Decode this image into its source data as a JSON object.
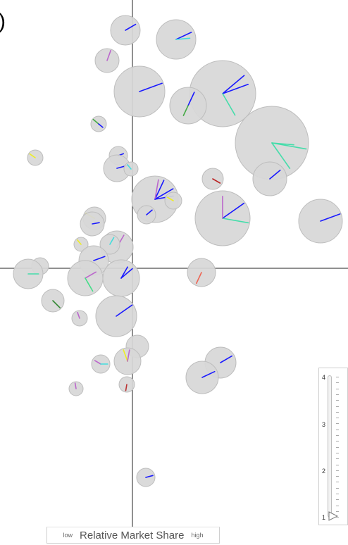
{
  "corner_glyph": ")",
  "x_axis": {
    "low_label": "low",
    "title": "Relative Market Share",
    "high_label": "high"
  },
  "slider": {
    "tick_labels": [
      "4",
      "3",
      "2",
      "1"
    ],
    "value": 1
  },
  "colors": {
    "bubble_fill": "#d7d7d7",
    "axis": "#222222"
  },
  "chart_data": {
    "type": "scatter",
    "xlabel": "Relative Market Share",
    "x_ends": [
      "low",
      "high"
    ],
    "xlim": [
      0,
      494
    ],
    "ylim": [
      0,
      774
    ],
    "quadrant_center": [
      188,
      381
    ],
    "grid": false,
    "points": [
      {
        "x": 178,
        "y": 43,
        "size": 21,
        "spokes": [
          {
            "color": "#1a1aff",
            "angle": -30,
            "len": 0.8
          }
        ]
      },
      {
        "x": 250,
        "y": 56,
        "size": 28,
        "spokes": [
          {
            "color": "#1a1aff",
            "angle": -25,
            "len": 0.85
          },
          {
            "color": "#44dddd",
            "angle": -5,
            "len": 0.7
          }
        ]
      },
      {
        "x": 152,
        "y": 86,
        "size": 17,
        "spokes": [
          {
            "color": "#bb66cc",
            "angle": -70,
            "len": 0.9
          }
        ]
      },
      {
        "x": 198,
        "y": 130,
        "size": 36,
        "spokes": [
          {
            "color": "#1a1aff",
            "angle": -20,
            "len": 0.95
          }
        ]
      },
      {
        "x": 316,
        "y": 133,
        "size": 47,
        "spokes": [
          {
            "color": "#1a1aff",
            "angle": -40,
            "len": 0.85
          },
          {
            "color": "#1a1aff",
            "angle": -20,
            "len": 0.82
          },
          {
            "color": "#44ddaa",
            "angle": 60,
            "len": 0.75
          }
        ]
      },
      {
        "x": 267,
        "y": 150,
        "size": 26,
        "spokes": [
          {
            "color": "#1a1aff",
            "angle": -65,
            "len": 0.8
          },
          {
            "color": "#44aa44",
            "angle": 115,
            "len": 0.6
          }
        ]
      },
      {
        "x": 140,
        "y": 176,
        "size": 11,
        "spokes": [
          {
            "color": "#44aa44",
            "angle": -140,
            "len": 0.9
          },
          {
            "color": "#1a1aff",
            "angle": 40,
            "len": 0.7
          }
        ]
      },
      {
        "x": 386,
        "y": 203,
        "size": 52,
        "spokes": [
          {
            "color": "#44ddaa",
            "angle": 10,
            "len": 0.95
          },
          {
            "color": "#44ddaa",
            "angle": 55,
            "len": 0.85
          },
          {
            "color": "#44ddaa",
            "angle": 5,
            "len": 0.6
          }
        ]
      },
      {
        "x": 50,
        "y": 224,
        "size": 11,
        "spokes": [
          {
            "color": "#eeee22",
            "angle": -145,
            "len": 0.85
          }
        ]
      },
      {
        "x": 168,
        "y": 221,
        "size": 13,
        "spokes": [
          {
            "color": "#1a1aff",
            "angle": -20,
            "len": 0.6
          }
        ]
      },
      {
        "x": 166,
        "y": 239,
        "size": 19,
        "spokes": [
          {
            "color": "#1a1aff",
            "angle": -15,
            "len": 0.85
          }
        ]
      },
      {
        "x": 186,
        "y": 240,
        "size": 10,
        "spokes": [
          {
            "color": "#44dddd",
            "angle": -130,
            "len": 0.8
          }
        ]
      },
      {
        "x": 302,
        "y": 254,
        "size": 15,
        "spokes": [
          {
            "color": "#bb2222",
            "angle": 30,
            "len": 0.8
          }
        ]
      },
      {
        "x": 383,
        "y": 254,
        "size": 24,
        "spokes": [
          {
            "color": "#1a1aff",
            "angle": -40,
            "len": 0.8
          }
        ]
      },
      {
        "x": 220,
        "y": 283,
        "size": 33,
        "spokes": [
          {
            "color": "#1a1aff",
            "angle": -65,
            "len": 0.9
          },
          {
            "color": "#1a1aff",
            "angle": -30,
            "len": 0.9
          },
          {
            "color": "#bb66cc",
            "angle": -80,
            "len": 0.85
          },
          {
            "color": "#1a1aff",
            "angle": -10,
            "len": 0.8
          }
        ]
      },
      {
        "x": 246,
        "y": 285,
        "size": 12,
        "spokes": [
          {
            "color": "#eeee22",
            "angle": -150,
            "len": 0.8
          }
        ]
      },
      {
        "x": 316,
        "y": 310,
        "size": 39,
        "spokes": [
          {
            "color": "#1a1aff",
            "angle": -35,
            "len": 0.95
          },
          {
            "color": "#44ddaa",
            "angle": 10,
            "len": 0.95
          },
          {
            "color": "#bb66cc",
            "angle": -90,
            "len": 0.8
          }
        ]
      },
      {
        "x": 208,
        "y": 305,
        "size": 13,
        "spokes": [
          {
            "color": "#1a1aff",
            "angle": -40,
            "len": 0.8
          }
        ]
      },
      {
        "x": 455,
        "y": 314,
        "size": 31,
        "spokes": [
          {
            "color": "#1a1aff",
            "angle": -20,
            "len": 0.95
          }
        ]
      },
      {
        "x": 134,
        "y": 310,
        "size": 16,
        "spokes": [
          {
            "color": "#eeee22",
            "angle": -150,
            "len": 0.85
          }
        ]
      },
      {
        "x": 131,
        "y": 318,
        "size": 17,
        "spokes": [
          {
            "color": "#1a1aff",
            "angle": -10,
            "len": 0.6
          }
        ]
      },
      {
        "x": 115,
        "y": 347,
        "size": 10,
        "spokes": [
          {
            "color": "#eeee22",
            "angle": -130,
            "len": 0.8
          }
        ]
      },
      {
        "x": 166,
        "y": 351,
        "size": 23,
        "spokes": [
          {
            "color": "#bb66cc",
            "angle": -60,
            "len": 0.85
          }
        ]
      },
      {
        "x": 156,
        "y": 347,
        "size": 14,
        "spokes": [
          {
            "color": "#44dddd",
            "angle": -60,
            "len": 0.8
          }
        ]
      },
      {
        "x": 133,
        "y": 370,
        "size": 21,
        "spokes": [
          {
            "color": "#1a1aff",
            "angle": -20,
            "len": 0.8
          }
        ]
      },
      {
        "x": 57,
        "y": 378,
        "size": 12,
        "spokes": []
      },
      {
        "x": 40,
        "y": 389,
        "size": 21,
        "spokes": [
          {
            "color": "#44ddaa",
            "angle": 0,
            "len": 0.7
          }
        ]
      },
      {
        "x": 121,
        "y": 395,
        "size": 25,
        "spokes": [
          {
            "color": "#bb66cc",
            "angle": -30,
            "len": 0.7
          },
          {
            "color": "#44dd88",
            "angle": 60,
            "len": 0.85
          }
        ]
      },
      {
        "x": 172,
        "y": 395,
        "size": 26,
        "spokes": [
          {
            "color": "#1a1aff",
            "angle": -40,
            "len": 0.8
          },
          {
            "color": "#1a1aff",
            "angle": -60,
            "len": 0.7
          }
        ]
      },
      {
        "x": 286,
        "y": 387,
        "size": 20,
        "spokes": [
          {
            "color": "#ee6655",
            "angle": 115,
            "len": 0.85
          }
        ]
      },
      {
        "x": 75,
        "y": 427,
        "size": 16,
        "spokes": [
          {
            "color": "#338833",
            "angle": 45,
            "len": 0.9
          }
        ]
      },
      {
        "x": 113,
        "y": 452,
        "size": 11,
        "spokes": [
          {
            "color": "#bb66cc",
            "angle": -110,
            "len": 0.8
          }
        ]
      },
      {
        "x": 165,
        "y": 449,
        "size": 29,
        "spokes": [
          {
            "color": "#1a1aff",
            "angle": -35,
            "len": 0.95
          }
        ]
      },
      {
        "x": 195,
        "y": 492,
        "size": 16,
        "spokes": []
      },
      {
        "x": 181,
        "y": 513,
        "size": 19,
        "spokes": [
          {
            "color": "#eeee22",
            "angle": -110,
            "len": 0.9
          },
          {
            "color": "#bb66cc",
            "angle": -80,
            "len": 0.85
          }
        ]
      },
      {
        "x": 143,
        "y": 517,
        "size": 13,
        "spokes": [
          {
            "color": "#bb66cc",
            "angle": -150,
            "len": 0.75
          },
          {
            "color": "#44dddd",
            "angle": 0,
            "len": 0.75
          }
        ]
      },
      {
        "x": 313,
        "y": 515,
        "size": 22,
        "spokes": [
          {
            "color": "#1a1aff",
            "angle": -30,
            "len": 0.85
          }
        ]
      },
      {
        "x": 287,
        "y": 536,
        "size": 23,
        "spokes": [
          {
            "color": "#1a1aff",
            "angle": -25,
            "len": 0.85
          }
        ]
      },
      {
        "x": 180,
        "y": 546,
        "size": 11,
        "spokes": [
          {
            "color": "#bb3333",
            "angle": 100,
            "len": 0.8
          }
        ]
      },
      {
        "x": 108,
        "y": 552,
        "size": 10,
        "spokes": [
          {
            "color": "#bb66cc",
            "angle": -100,
            "len": 0.8
          }
        ]
      },
      {
        "x": 207,
        "y": 678,
        "size": 13,
        "spokes": [
          {
            "color": "#1a1aff",
            "angle": -15,
            "len": 0.8
          }
        ]
      }
    ]
  }
}
